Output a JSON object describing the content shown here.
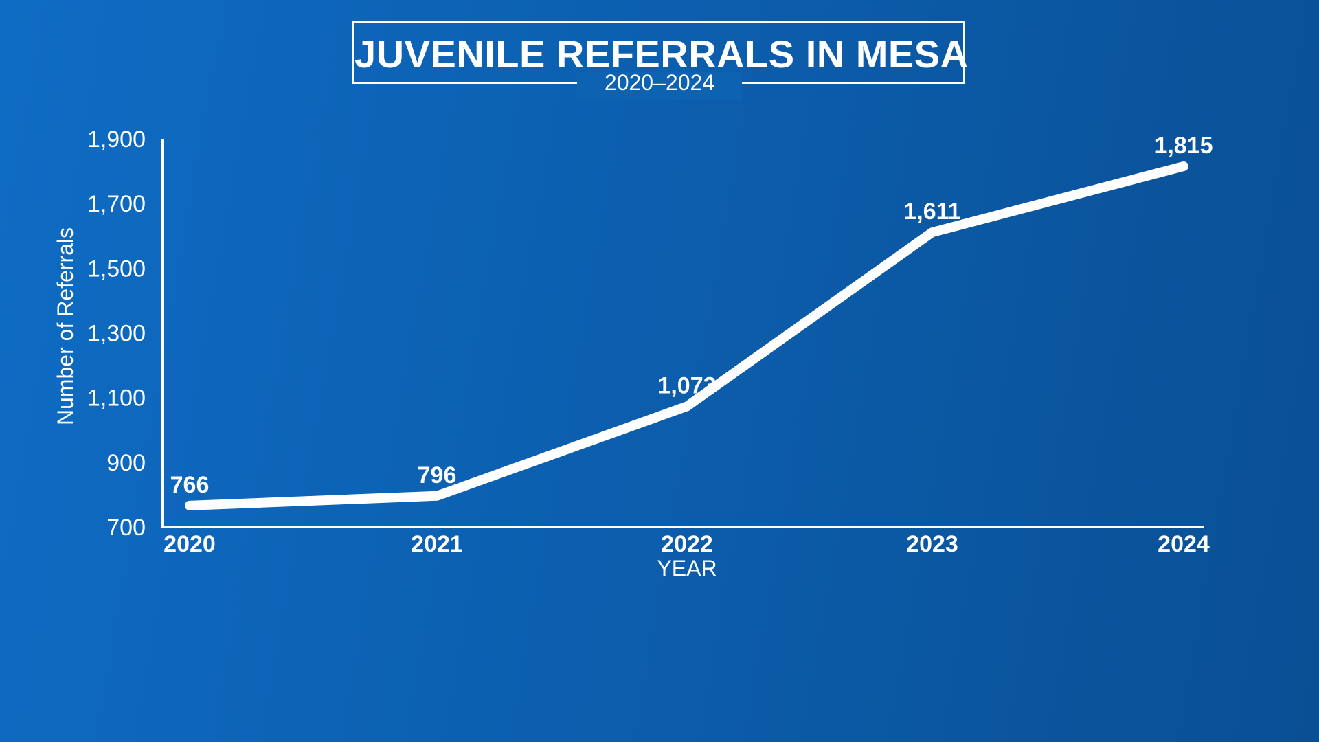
{
  "title": "JUVENILE REFERRALS IN MESA",
  "subtitle": "2020–2024",
  "chart_data": {
    "type": "line",
    "title": "JUVENILE REFERRALS IN MESA",
    "subtitle": "2020–2024",
    "xlabel": "YEAR",
    "ylabel": "Number of Referrals",
    "categories": [
      "2020",
      "2021",
      "2022",
      "2023",
      "2024"
    ],
    "series": [
      {
        "values": [
          766,
          796,
          1073,
          1611,
          1815
        ],
        "data_labels": [
          "766",
          "796",
          "1,073",
          "1,611",
          "1,815"
        ]
      }
    ],
    "ylim": [
      700,
      1900
    ],
    "yticks": [
      700,
      900,
      1100,
      1300,
      1500,
      1700,
      1900
    ],
    "ytick_labels": [
      "700",
      "900",
      "1,100",
      "1,300",
      "1,500",
      "1,700",
      "1,900"
    ],
    "grid": false,
    "legend": "none",
    "colors": {
      "line": "#ffffff",
      "axis": "#ffffff",
      "background_start": "#0f6cc4",
      "background_end": "#0a4f94"
    }
  }
}
